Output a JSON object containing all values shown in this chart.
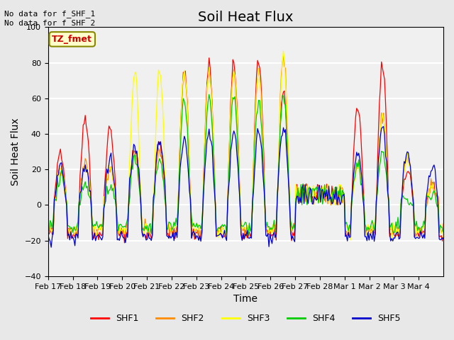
{
  "title": "Soil Heat Flux",
  "ylabel": "Soil Heat Flux",
  "xlabel": "Time",
  "annotation_text": "No data for f_SHF_1\nNo data for f_SHF_2",
  "box_label": "TZ_fmet",
  "ylim": [
    -40,
    100
  ],
  "series_colors": [
    "#ff0000",
    "#ff8c00",
    "#ffff00",
    "#00cc00",
    "#0000cc"
  ],
  "series_labels": [
    "SHF1",
    "SHF2",
    "SHF3",
    "SHF4",
    "SHF5"
  ],
  "xtick_labels": [
    "Feb 17",
    "Feb 18",
    "Feb 19",
    "Feb 20",
    "Feb 21",
    "Feb 22",
    "Feb 23",
    "Feb 24",
    "Feb 25",
    "Feb 26",
    "Feb 27",
    "Feb 28",
    "Mar 1",
    "Mar 2",
    "Mar 3",
    "Mar 4"
  ],
  "bg_color": "#e8e8e8",
  "plot_bg": "#f0f0f0",
  "grid_color": "#ffffff",
  "title_fontsize": 14,
  "label_fontsize": 10,
  "tick_fontsize": 8
}
